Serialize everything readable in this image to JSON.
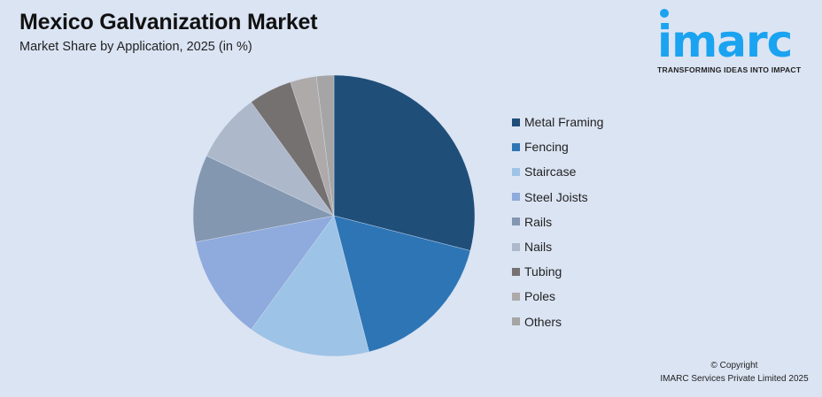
{
  "header": {
    "title": "Mexico Galvanization Market",
    "subtitle": "Market Share by Application, 2025 (in %)"
  },
  "logo": {
    "word": "imarc",
    "tagline": "TRANSFORMING IDEAS INTO IMPACT",
    "color": "#1aa3f0"
  },
  "footer": {
    "line1": "© Copyright",
    "line2": "IMARC Services Private Limited 2025"
  },
  "chart_data": {
    "type": "pie",
    "title": "Mexico Galvanization Market",
    "subtitle": "Market Share by Application, 2025 (in %)",
    "legend_position": "right",
    "start_angle": "12 o'clock, clockwise",
    "categories": [
      "Metal Framing",
      "Fencing",
      "Staircase",
      "Steel Joists",
      "Rails",
      "Nails",
      "Tubing",
      "Poles",
      "Others"
    ],
    "values": [
      29,
      17,
      14,
      12,
      10,
      8,
      5,
      3,
      2
    ],
    "colors": [
      "#1f4e79",
      "#2e75b6",
      "#9dc3e6",
      "#8faadc",
      "#8497b0",
      "#adb9ca",
      "#767171",
      "#aeaaaa",
      "#a5a5a5"
    ]
  }
}
